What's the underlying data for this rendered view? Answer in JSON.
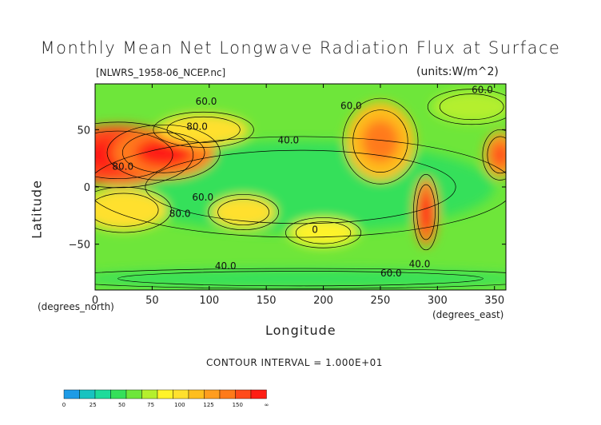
{
  "chart_data": {
    "type": "heatmap",
    "subtype": "filled-contour-map",
    "title": "Monthly Mean Net Longwave Radiation Flux at Surface",
    "file_label": "[NLWRS_1958-06_NCEP.nc]",
    "units_label": "(units:W/m^2)",
    "xlabel": "Longitude",
    "x_units": "(degrees_east)",
    "ylabel": "Latitude",
    "y_units": "(degrees_north)",
    "xlim": [
      0,
      360
    ],
    "ylim": [
      -90,
      90
    ],
    "x_ticks": [
      "0",
      "50",
      "100",
      "150",
      "200",
      "250",
      "300",
      "350"
    ],
    "y_ticks": [
      "50",
      "0",
      "−50"
    ],
    "contour_interval_text": "CONTOUR INTERVAL = 1.000E+01",
    "contour_labels": [
      "60.0",
      "60.0",
      "80.0",
      "40.0",
      "60.0",
      "80.0",
      "80.0",
      "60.0",
      "40.0",
      "60.0",
      "40.0",
      "0"
    ],
    "colorbar": {
      "tick_labels": [
        "0",
        "25",
        "50",
        "75",
        "100",
        "125",
        "150",
        "∞"
      ],
      "bins": [
        {
          "from": 0,
          "to": 12.5,
          "color": "#1e9be6"
        },
        {
          "from": 12.5,
          "to": 25,
          "color": "#18c3c0"
        },
        {
          "from": 25,
          "to": 37.5,
          "color": "#1edb9a"
        },
        {
          "from": 37.5,
          "to": 50,
          "color": "#35e05a"
        },
        {
          "from": 50,
          "to": 62.5,
          "color": "#6ee63a"
        },
        {
          "from": 62.5,
          "to": 75,
          "color": "#b4ef2d"
        },
        {
          "from": 75,
          "to": 87.5,
          "color": "#fff32a"
        },
        {
          "from": 87.5,
          "to": 100,
          "color": "#ffe02e"
        },
        {
          "from": 100,
          "to": 112.5,
          "color": "#ffbe1e"
        },
        {
          "from": 112.5,
          "to": 125,
          "color": "#ff9d1f"
        },
        {
          "from": 125,
          "to": 137.5,
          "color": "#ff7a1a"
        },
        {
          "from": 137.5,
          "to": 150,
          "color": "#ff4b1a"
        },
        {
          "from": 150,
          "to": 175,
          "color": "#ff1e14"
        }
      ]
    },
    "regions": [
      {
        "lon": 180,
        "lat": 0,
        "value": 38
      },
      {
        "lon": 250,
        "lat": 40,
        "value": 110
      },
      {
        "lon": 20,
        "lat": 28,
        "value": 140
      },
      {
        "lon": 60,
        "lat": 30,
        "value": 130
      },
      {
        "lon": 355,
        "lat": 28,
        "value": 120
      },
      {
        "lon": 25,
        "lat": -20,
        "value": 95
      },
      {
        "lon": 130,
        "lat": -22,
        "value": 90
      },
      {
        "lon": 290,
        "lat": -22,
        "value": 130
      },
      {
        "lon": 95,
        "lat": 50,
        "value": 95
      },
      {
        "lon": 200,
        "lat": -40,
        "value": 80
      },
      {
        "lon": 330,
        "lat": 70,
        "value": 70
      },
      {
        "lon": 180,
        "lat": -80,
        "value": 45
      }
    ]
  }
}
